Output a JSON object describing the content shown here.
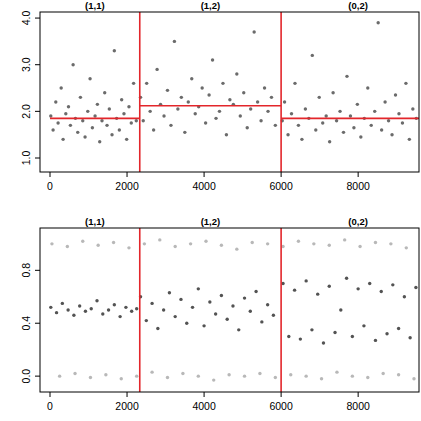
{
  "chart_data": [
    {
      "type": "scatter",
      "xlim": [
        -260,
        9580
      ],
      "xticks": [
        0,
        2000,
        4000,
        6000,
        8000
      ],
      "ylim": [
        0.7,
        4.13
      ],
      "yticks": [
        {
          "value": 1,
          "label": "1.0"
        },
        {
          "value": 2,
          "label": "2.0"
        },
        {
          "value": 3,
          "label": "3.0"
        },
        {
          "value": 4,
          "label": "4.0"
        }
      ],
      "series": [
        {
          "color": "#3a3a3a",
          "marker": "circle",
          "x": [
            20,
            80,
            150,
            210,
            290,
            340,
            410,
            480,
            530,
            600,
            660,
            720,
            790,
            850,
            910,
            980,
            1040,
            1100,
            1170,
            1230,
            1290,
            1350,
            1420,
            1480,
            1540,
            1610,
            1670,
            1730,
            1800,
            1860,
            1920,
            1990,
            2050,
            2110,
            2170,
            2240,
            2350,
            2420,
            2510,
            2600,
            2690,
            2780,
            2870,
            2960,
            3050,
            3140,
            3230,
            3320,
            3410,
            3500,
            3590,
            3680,
            3770,
            3860,
            3950,
            4040,
            4130,
            4220,
            4310,
            4400,
            4490,
            4580,
            4670,
            4760,
            4850,
            4940,
            5030,
            5120,
            5210,
            5300,
            5390,
            5480,
            5570,
            5660,
            5750,
            5850,
            6030,
            6090,
            6180,
            6270,
            6360,
            6450,
            6540,
            6630,
            6720,
            6810,
            6900,
            6990,
            7080,
            7170,
            7260,
            7350,
            7440,
            7530,
            7620,
            7710,
            7800,
            7890,
            7980,
            8070,
            8160,
            8250,
            8340,
            8430,
            8520,
            8610,
            8700,
            8790,
            8880,
            8970,
            9060,
            9150,
            9240,
            9330,
            9420,
            9510
          ],
          "values": [
            1.9,
            1.6,
            2.2,
            1.75,
            2.5,
            1.4,
            1.95,
            2.1,
            1.7,
            3.0,
            1.85,
            1.55,
            2.3,
            1.8,
            1.45,
            2.0,
            2.7,
            1.65,
            1.9,
            2.15,
            1.35,
            1.8,
            2.4,
            1.7,
            2.05,
            1.5,
            3.3,
            1.85,
            1.6,
            2.25,
            1.95,
            1.4,
            2.1,
            1.75,
            2.6,
            1.8,
            2.3,
            1.8,
            2.6,
            2.0,
            1.6,
            2.9,
            2.15,
            1.9,
            2.45,
            1.7,
            3.5,
            2.05,
            2.3,
            1.55,
            2.2,
            2.7,
            1.95,
            2.1,
            2.5,
            1.75,
            2.35,
            3.1,
            1.85,
            2.0,
            2.6,
            1.5,
            2.25,
            2.15,
            2.8,
            1.9,
            2.4,
            1.65,
            2.05,
            3.7,
            2.2,
            1.8,
            2.5,
            2.0,
            2.3,
            1.7,
            1.8,
            2.2,
            1.5,
            1.95,
            2.6,
            1.7,
            1.4,
            2.05,
            1.85,
            3.2,
            1.6,
            2.3,
            1.75,
            1.9,
            1.35,
            2.4,
            1.8,
            2.0,
            1.55,
            2.75,
            1.9,
            1.65,
            2.15,
            1.45,
            1.85,
            2.5,
            1.7,
            2.0,
            3.9,
            1.6,
            2.2,
            1.8,
            1.5,
            2.35,
            1.95,
            1.75,
            2.6,
            1.4,
            2.05,
            1.85
          ]
        }
      ],
      "segments": [
        {
          "label": "(1,1)",
          "start": 0,
          "end": 2330,
          "mean": 1.85,
          "color": "#e3262b"
        },
        {
          "label": "(1,2)",
          "start": 2330,
          "end": 6000,
          "mean": 2.12,
          "color": "#e3262b"
        },
        {
          "label": "(0,2)",
          "start": 6000,
          "end": 10000,
          "mean": 1.85,
          "color": "#e3262b"
        }
      ]
    },
    {
      "type": "scatter",
      "xlim": [
        -260,
        9580
      ],
      "xticks": [
        0,
        2000,
        4000,
        6000,
        8000
      ],
      "ylim": [
        -0.12,
        1.12
      ],
      "yticks": [
        {
          "value": 0,
          "label": "0.0"
        },
        0.4,
        0.8
      ],
      "series": [
        {
          "color": "#a0a0a0",
          "marker": "circle",
          "x": [
            50,
            450,
            850,
            1250,
            1650,
            2050,
            2450,
            2850,
            3250,
            3650,
            4050,
            4450,
            4850,
            5250,
            5650,
            6050,
            6450,
            6850,
            7250,
            7650,
            8050,
            8450,
            8850,
            9250,
            250,
            650,
            1050,
            1450,
            1850,
            2250,
            2650,
            3050,
            3450,
            3850,
            4250,
            4650,
            5050,
            5450,
            5850,
            6250,
            6650,
            7050,
            7450,
            7850,
            8250,
            8650,
            9050,
            9450
          ],
          "values": [
            1.0,
            0.98,
            1.02,
            0.99,
            1.01,
            0.97,
            1.0,
            1.03,
            0.98,
            1.0,
            1.02,
            0.99,
            0.96,
            1.01,
            1.0,
            0.98,
            1.02,
            1.0,
            0.99,
            1.03,
            0.98,
            1.01,
            1.0,
            0.97,
            0.0,
            0.02,
            -0.01,
            0.01,
            -0.02,
            0.0,
            0.03,
            -0.01,
            0.02,
            0.0,
            -0.03,
            0.01,
            0.0,
            0.02,
            -0.01,
            0.01,
            0.0,
            -0.02,
            0.03,
            0.0,
            -0.01,
            0.02,
            0.01,
            -0.02
          ]
        },
        {
          "color": "#1a1a1a",
          "marker": "circle",
          "x": [
            20,
            170,
            320,
            470,
            620,
            770,
            920,
            1070,
            1220,
            1370,
            1520,
            1670,
            1820,
            1970,
            2120,
            2250,
            2350,
            2500,
            2650,
            2800,
            2950,
            3100,
            3250,
            3400,
            3550,
            3700,
            3850,
            4000,
            4150,
            4300,
            4450,
            4600,
            4750,
            4900,
            5050,
            5200,
            5350,
            5500,
            5650,
            5800,
            6050,
            6200,
            6350,
            6500,
            6650,
            6800,
            6950,
            7100,
            7250,
            7400,
            7550,
            7700,
            7850,
            8000,
            8150,
            8300,
            8450,
            8600,
            8750,
            8900,
            9050,
            9200,
            9350,
            9500
          ],
          "values": [
            0.52,
            0.48,
            0.55,
            0.5,
            0.46,
            0.53,
            0.49,
            0.51,
            0.57,
            0.47,
            0.5,
            0.54,
            0.45,
            0.52,
            0.49,
            0.51,
            0.6,
            0.42,
            0.55,
            0.36,
            0.5,
            0.63,
            0.45,
            0.58,
            0.4,
            0.52,
            0.66,
            0.38,
            0.56,
            0.47,
            0.61,
            0.43,
            0.53,
            0.35,
            0.59,
            0.49,
            0.64,
            0.41,
            0.54,
            0.46,
            0.7,
            0.3,
            0.65,
            0.28,
            0.72,
            0.35,
            0.62,
            0.25,
            0.68,
            0.33,
            0.5,
            0.74,
            0.3,
            0.66,
            0.38,
            0.7,
            0.27,
            0.64,
            0.32,
            0.69,
            0.36,
            0.6,
            0.29,
            0.67
          ]
        }
      ],
      "segments": [
        {
          "label": "(1,1)",
          "start": 0,
          "end": 2330,
          "color": "#e3262b"
        },
        {
          "label": "(1,2)",
          "start": 2330,
          "end": 6000,
          "color": "#e3262b"
        },
        {
          "label": "(0,2)",
          "start": 6000,
          "end": 10000,
          "color": "#e3262b"
        }
      ]
    }
  ]
}
